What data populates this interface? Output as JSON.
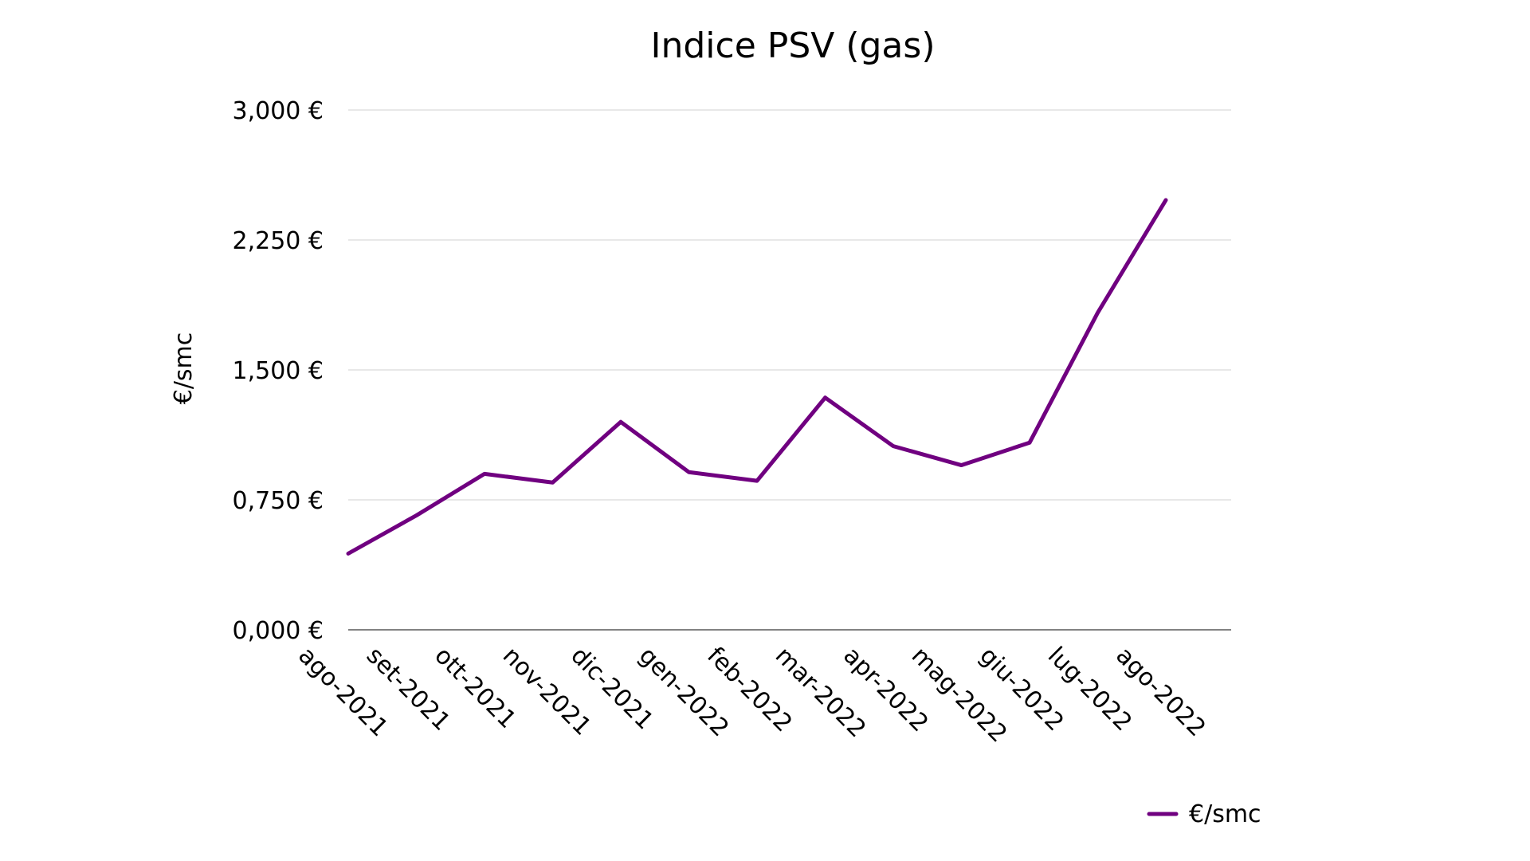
{
  "chart_data": {
    "type": "line",
    "title": "Indice PSV (gas)",
    "xlabel": "",
    "ylabel": "€/smc",
    "categories": [
      "ago-2021",
      "set-2021",
      "ott-2021",
      "nov-2021",
      "dic-2021",
      "gen-2022",
      "feb-2022",
      "mar-2022",
      "apr-2022",
      "mag-2022",
      "giu-2022",
      "lug-2022",
      "ago-2022"
    ],
    "series": [
      {
        "name": "€/smc",
        "color": "#700080",
        "values": [
          0.44,
          0.66,
          0.9,
          0.85,
          1.2,
          0.91,
          0.86,
          1.34,
          1.06,
          0.95,
          1.08,
          1.83,
          2.48
        ]
      }
    ],
    "ylim": [
      0,
      3
    ],
    "yticks": [
      0,
      0.75,
      1.5,
      2.25,
      3
    ],
    "ytick_labels": [
      "0,000 €",
      "0,750 €",
      "1,500 €",
      "2,250 €",
      "3,000 €"
    ],
    "grid": true,
    "legend_position": "bottom-right"
  }
}
